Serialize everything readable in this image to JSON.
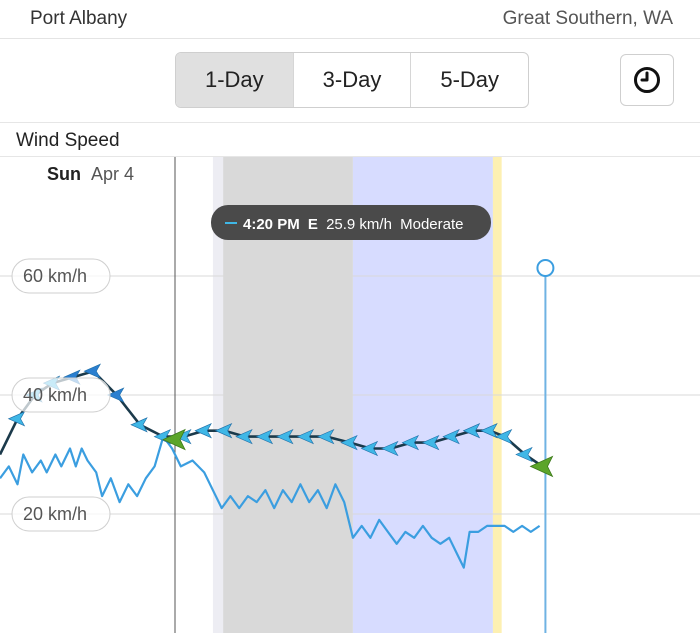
{
  "header": {
    "location": "Port Albany",
    "region": "Great Southern, WA"
  },
  "tabs": [
    {
      "label": "1-Day",
      "active": true
    },
    {
      "label": "3-Day",
      "active": false
    },
    {
      "label": "5-Day",
      "active": false
    }
  ],
  "clock_button": {
    "icon": "clock-icon"
  },
  "section": {
    "title": "Wind Speed"
  },
  "date": {
    "day": "Sun",
    "date": "Apr 4"
  },
  "tooltip": {
    "time": "4:20 PM",
    "direction": "E",
    "speed": "25.9 km/h",
    "rating": "Moderate"
  },
  "colors": {
    "gust_line": "#3b9ee0",
    "mean_line": "#1b3a4b",
    "arrow": "#3fb7e6",
    "arrow_dark": "#2a7fd0",
    "arrow_green": "#5ca52a",
    "night_shade": "#d9d9d9",
    "twilight_shade": "#ededf3",
    "now_band": "#d7dcff",
    "sunrise_band": "#fdf0b2",
    "cursor_line": "#6fb3e3"
  },
  "chart_data": {
    "type": "line",
    "y_tick_labels": [
      "60 km/h",
      "40 km/h",
      "20 km/h"
    ],
    "y_ticks": [
      60,
      40,
      20
    ],
    "ylim": [
      0,
      80
    ],
    "xlim": [
      0,
      24
    ],
    "series": [
      {
        "key": "mean",
        "points": [
          [
            0.0,
            30
          ],
          [
            0.6,
            36
          ],
          [
            1.2,
            40
          ],
          [
            1.8,
            42
          ],
          [
            2.5,
            43
          ],
          [
            3.2,
            44
          ],
          [
            4.0,
            40
          ],
          [
            4.8,
            35
          ],
          [
            5.6,
            33
          ],
          [
            6.3,
            33
          ],
          [
            7.0,
            34
          ],
          [
            7.7,
            34
          ],
          [
            8.4,
            33
          ],
          [
            9.1,
            33
          ],
          [
            9.8,
            33
          ],
          [
            10.5,
            33
          ],
          [
            11.2,
            33
          ],
          [
            12.0,
            32
          ],
          [
            12.7,
            31
          ],
          [
            13.4,
            31
          ],
          [
            14.1,
            32
          ],
          [
            14.8,
            32
          ],
          [
            15.5,
            33
          ],
          [
            16.2,
            34
          ],
          [
            16.8,
            34
          ],
          [
            17.3,
            33
          ],
          [
            18.0,
            30
          ],
          [
            18.6,
            28
          ]
        ]
      },
      {
        "key": "gust",
        "points": [
          [
            0.0,
            26
          ],
          [
            0.3,
            28
          ],
          [
            0.6,
            25
          ],
          [
            0.8,
            30
          ],
          [
            1.1,
            27
          ],
          [
            1.4,
            29
          ],
          [
            1.6,
            27
          ],
          [
            1.9,
            30
          ],
          [
            2.1,
            28
          ],
          [
            2.4,
            31
          ],
          [
            2.6,
            28
          ],
          [
            2.8,
            31
          ],
          [
            3.0,
            29
          ],
          [
            3.3,
            27
          ],
          [
            3.5,
            23
          ],
          [
            3.8,
            26
          ],
          [
            4.1,
            22
          ],
          [
            4.4,
            25
          ],
          [
            4.7,
            23
          ],
          [
            5.0,
            26
          ],
          [
            5.3,
            28
          ],
          [
            5.6,
            33
          ],
          [
            5.9,
            31
          ],
          [
            6.2,
            28
          ],
          [
            6.6,
            29
          ],
          [
            7.0,
            27
          ],
          [
            7.3,
            24
          ],
          [
            7.6,
            21
          ],
          [
            7.9,
            23
          ],
          [
            8.2,
            21
          ],
          [
            8.5,
            23
          ],
          [
            8.8,
            22
          ],
          [
            9.1,
            24
          ],
          [
            9.4,
            21
          ],
          [
            9.7,
            24
          ],
          [
            10.0,
            22
          ],
          [
            10.3,
            25
          ],
          [
            10.6,
            22
          ],
          [
            10.9,
            24
          ],
          [
            11.2,
            21
          ],
          [
            11.5,
            25
          ],
          [
            11.8,
            22
          ],
          [
            12.1,
            16
          ],
          [
            12.4,
            18
          ],
          [
            12.7,
            16
          ],
          [
            13.0,
            19
          ],
          [
            13.3,
            17
          ],
          [
            13.6,
            15
          ],
          [
            13.9,
            17
          ],
          [
            14.2,
            16
          ],
          [
            14.5,
            18
          ],
          [
            14.8,
            16
          ],
          [
            15.1,
            15
          ],
          [
            15.4,
            16
          ],
          [
            15.7,
            13
          ],
          [
            15.9,
            11
          ],
          [
            16.1,
            17
          ],
          [
            16.4,
            17
          ],
          [
            16.7,
            18
          ],
          [
            17.0,
            18
          ],
          [
            17.3,
            18
          ],
          [
            17.6,
            17
          ],
          [
            17.9,
            18
          ],
          [
            18.2,
            17
          ],
          [
            18.5,
            18
          ]
        ]
      }
    ],
    "shading": [
      {
        "x0": 7.3,
        "x1": 7.65,
        "kind": "twilight"
      },
      {
        "x0": 7.65,
        "x1": 12.1,
        "kind": "night"
      },
      {
        "x0": 12.1,
        "x1": 16.9,
        "kind": "now"
      },
      {
        "x0": 16.9,
        "x1": 17.2,
        "kind": "sunrise"
      }
    ],
    "markers": [
      {
        "x": 6.0,
        "kind": "green-arrow"
      },
      {
        "x": 18.6,
        "kind": "green-arrow"
      }
    ],
    "cursor_x": 6.0,
    "right_marker_x": 18.7
  }
}
